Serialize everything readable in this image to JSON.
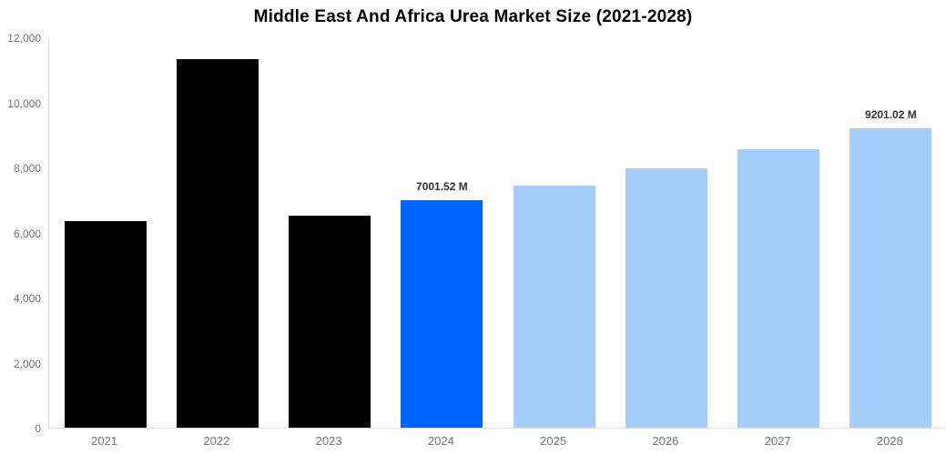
{
  "title": "Middle East And Africa Urea Market Size (2021-2028)",
  "colors": {
    "background": "#ffffff",
    "title_text": "#000000",
    "historical_bar": "#000000",
    "current_year_bar": "#0066ff",
    "forecast_bar": "#a4cefb",
    "axis_line": "#e2e2e2",
    "axis_text": "#757575",
    "value_label_text": "#333333"
  },
  "chart_data": {
    "type": "bar",
    "title": "Middle East And Africa Urea Market Size (2021-2028)",
    "xlabel": "",
    "ylabel": "",
    "categories": [
      "2021",
      "2022",
      "2023",
      "2024",
      "2025",
      "2026",
      "2027",
      "2028"
    ],
    "values": [
      6350,
      11330,
      6525,
      7001.52,
      7430,
      7960,
      8560,
      9201.02
    ],
    "bar_colors": [
      "#000000",
      "#000000",
      "#000000",
      "#0066ff",
      "#a4cefb",
      "#a4cefb",
      "#a4cefb",
      "#a4cefb"
    ],
    "data_labels": [
      null,
      null,
      null,
      "7001.52 M",
      null,
      null,
      null,
      "9201.02 M"
    ],
    "value_unit": "M",
    "ylim": [
      0,
      12000
    ],
    "yticks": [
      0,
      2000,
      4000,
      6000,
      8000,
      10000,
      12000
    ],
    "ytick_labels": [
      "0",
      "2,000",
      "4,000",
      "6,000",
      "8,000",
      "10,000",
      "12,000"
    ],
    "grid": false,
    "legend": false
  }
}
